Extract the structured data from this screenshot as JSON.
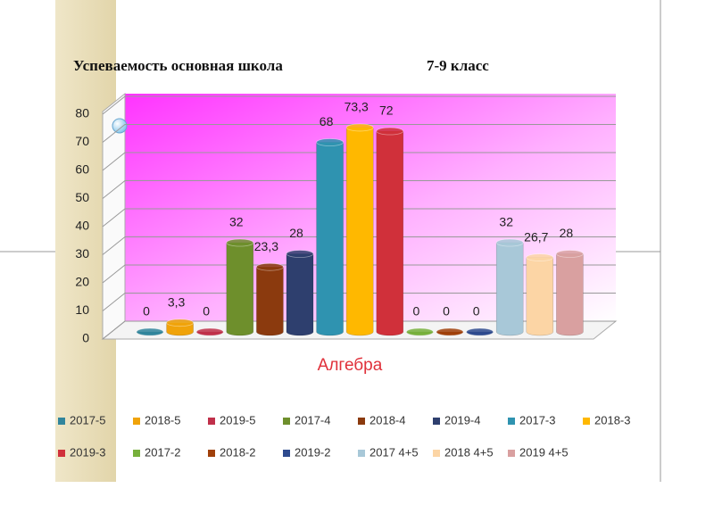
{
  "chart_data": {
    "type": "bar3d",
    "title": "Успеваемость основная школа",
    "subtitle": "7-9 класс",
    "categories": [
      "Алгебра"
    ],
    "ylim": [
      0,
      80
    ],
    "yticks": [
      0,
      10,
      20,
      30,
      40,
      50,
      60,
      70,
      80
    ],
    "grid": true,
    "legend": "bottom",
    "series": [
      {
        "name": "2017-5",
        "color": "#31859c",
        "values": [
          0
        ]
      },
      {
        "name": "2018-5",
        "color": "#f0a30a",
        "values": [
          3.3
        ],
        "value_labels": [
          "3,3"
        ]
      },
      {
        "name": "2019-5",
        "color": "#c0304a",
        "values": [
          0
        ]
      },
      {
        "name": "2017-4",
        "color": "#6e8f2c",
        "values": [
          32
        ]
      },
      {
        "name": "2018-4",
        "color": "#8b3a0e",
        "values": [
          23.3
        ],
        "value_labels": [
          "23,3"
        ]
      },
      {
        "name": "2019-4",
        "color": "#2e3f6e",
        "values": [
          28
        ]
      },
      {
        "name": "2017-3",
        "color": "#2f93b0",
        "values": [
          68
        ]
      },
      {
        "name": "2018-3",
        "color": "#ffb800",
        "values": [
          73.3
        ],
        "value_labels": [
          "73,3"
        ]
      },
      {
        "name": "2019-3",
        "color": "#d0303a",
        "values": [
          72
        ]
      },
      {
        "name": "2017-2",
        "color": "#77b03c",
        "values": [
          0
        ]
      },
      {
        "name": "2018-2",
        "color": "#a0400a",
        "values": [
          0
        ]
      },
      {
        "name": "2019-2",
        "color": "#2e4a8e",
        "values": [
          0
        ]
      },
      {
        "name": "2017 4+5",
        "color": "#a8c8d8",
        "values": [
          32
        ]
      },
      {
        "name": "2018 4+5",
        "color": "#fcd5a5",
        "values": [
          26.7
        ],
        "value_labels": [
          "26,7"
        ]
      },
      {
        "name": "2019 4+5",
        "color": "#d9a0a0",
        "values": [
          28
        ]
      }
    ]
  }
}
